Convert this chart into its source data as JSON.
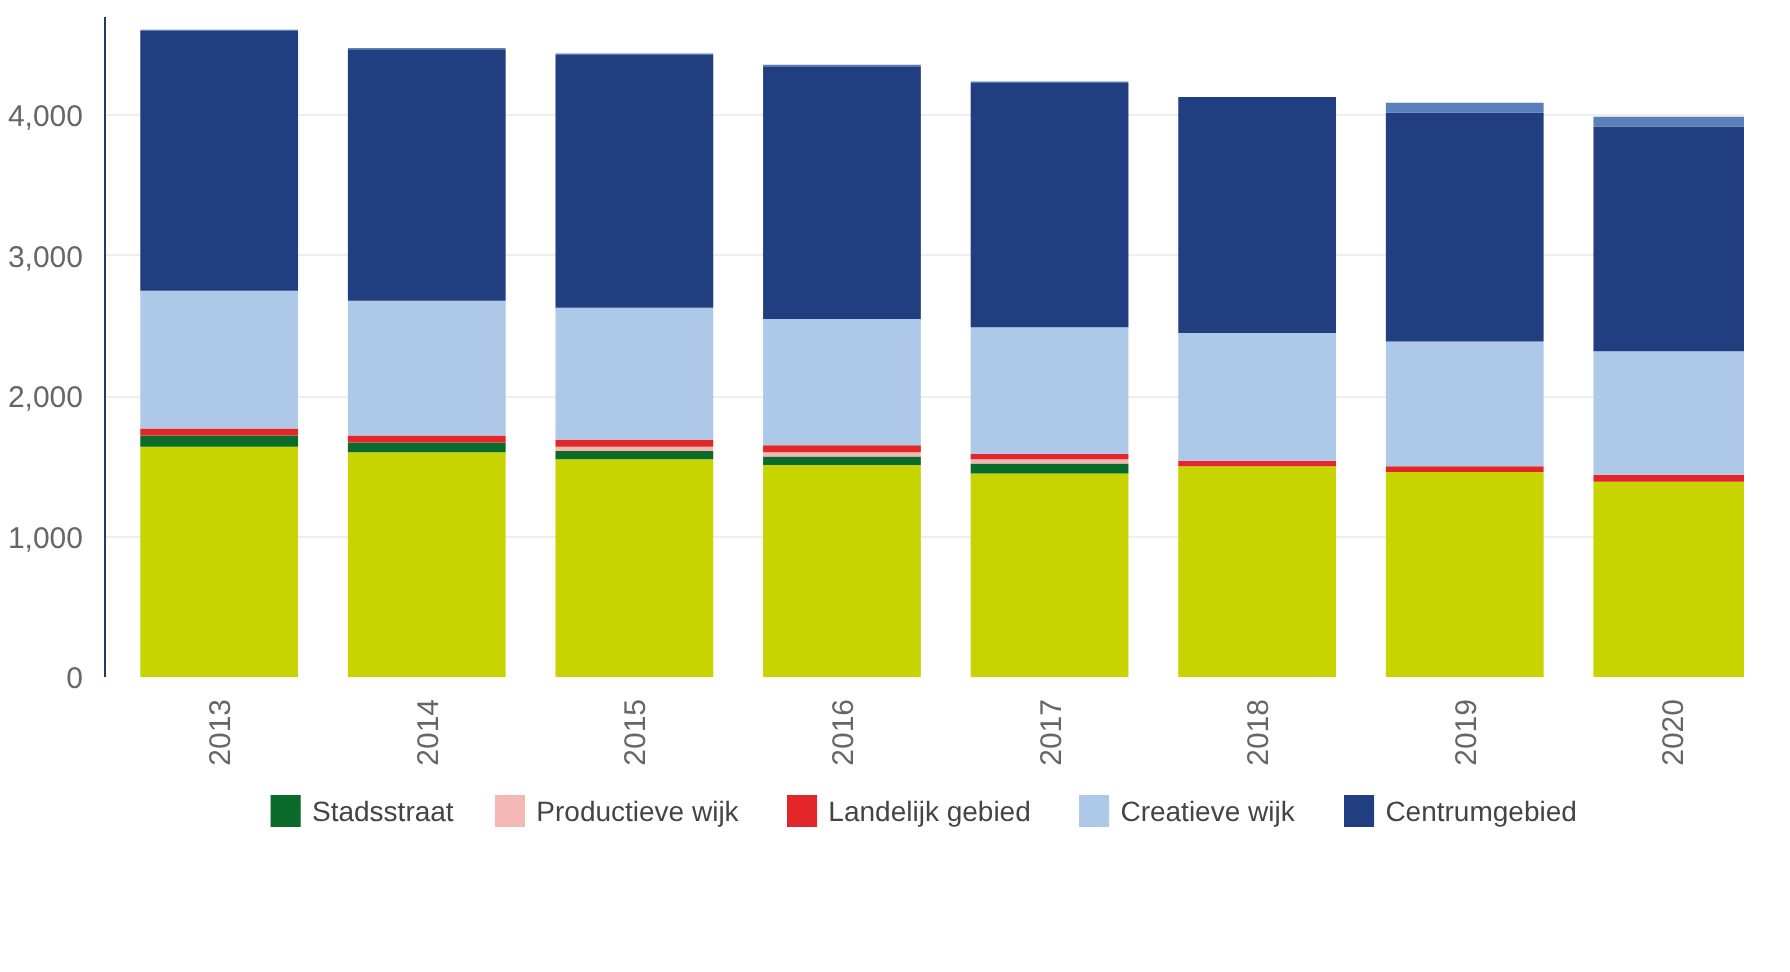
{
  "chart_data": {
    "type": "bar",
    "stacked": true,
    "categories": [
      "2013",
      "2014",
      "2015",
      "2016",
      "2017",
      "2018",
      "2019",
      "2020"
    ],
    "series": [
      {
        "color": "#c8d400",
        "values": [
          1640,
          1600,
          1550,
          1510,
          1450,
          1500,
          1460,
          1390
        ]
      },
      {
        "name": "Stadsstraat",
        "color": "#0b6b2a",
        "values": [
          80,
          70,
          60,
          60,
          70,
          0,
          0,
          0
        ]
      },
      {
        "name": "Productieve wijk",
        "color": "#f4b8b4",
        "values": [
          null,
          null,
          30,
          30,
          30,
          null,
          null,
          null
        ]
      },
      {
        "name": "Landelijk gebied",
        "color": "#e3262a",
        "values": [
          50,
          50,
          50,
          50,
          40,
          40,
          40,
          50
        ]
      },
      {
        "name": "Creatieve wijk",
        "color": "#aec8e8",
        "values": [
          980,
          960,
          940,
          900,
          900,
          910,
          890,
          880
        ]
      },
      {
        "name": "Centrumgebied",
        "color": "#213f80",
        "values": [
          1850,
          1790,
          1800,
          1800,
          1740,
          1680,
          1630,
          1600
        ]
      },
      {
        "color": "#5b7fb8",
        "values": [
          10,
          10,
          10,
          10,
          10,
          0,
          70,
          70
        ]
      }
    ],
    "ylim": [
      0,
      4700
    ],
    "yticks": [
      0,
      {
        "value": 1000,
        "label": "1,000"
      },
      {
        "value": 2000,
        "label": "2,000"
      },
      {
        "value": 3000,
        "label": "3,000"
      },
      {
        "value": 4000,
        "label": "4,000"
      }
    ],
    "grid": "y",
    "legend": "bottom"
  }
}
